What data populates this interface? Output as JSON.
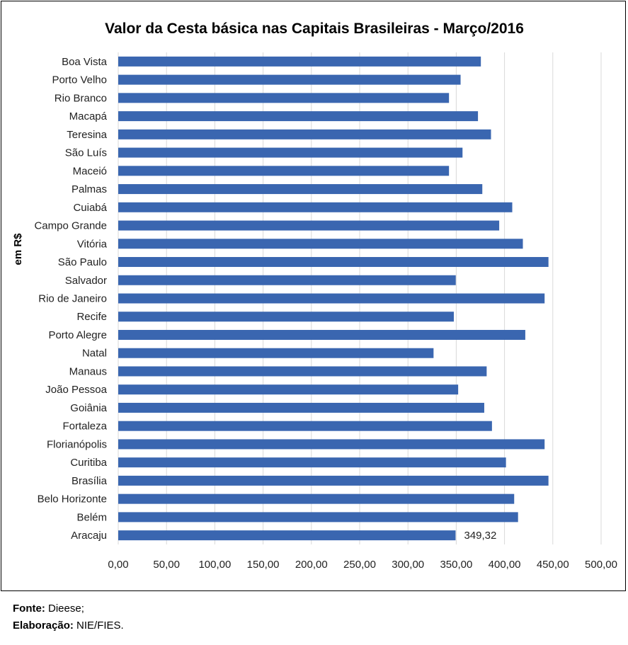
{
  "chart_data": {
    "type": "bar",
    "orientation": "horizontal",
    "title": "Valor da Cesta básica nas Capitais Brasileiras - Março/2016",
    "ylabel": "em R$",
    "xlabel": "",
    "xlim": [
      0,
      500
    ],
    "xticks": [
      "0,00",
      "50,00",
      "100,00",
      "150,00",
      "200,00",
      "250,00",
      "300,00",
      "350,00",
      "400,00",
      "450,00",
      "500,00"
    ],
    "bar_color": "#3a66b0",
    "grid": true,
    "categories": [
      "Boa Vista",
      "Porto Velho",
      "Rio Branco",
      "Macapá",
      "Teresina",
      "São Luís",
      "Maceió",
      "Palmas",
      "Cuiabá",
      "Campo Grande",
      "Vitória",
      "São Paulo",
      "Salvador",
      "Rio de Janeiro",
      "Recife",
      "Porto Alegre",
      "Natal",
      "Manaus",
      "João Pessoa",
      "Goiânia",
      "Fortaleza",
      "Florianópolis",
      "Curitiba",
      "Brasília",
      "Belo Horizonte",
      "Belém",
      "Aracaju"
    ],
    "values": [
      375.5,
      354.5,
      342.5,
      372.5,
      386.0,
      356.5,
      342.5,
      377.0,
      408.0,
      394.5,
      419.0,
      445.5,
      349.5,
      441.5,
      347.5,
      421.5,
      326.5,
      381.5,
      352.0,
      379.0,
      387.0,
      441.5,
      401.5,
      445.5,
      410.0,
      414.0,
      349.32
    ],
    "data_labels": [
      {
        "category": "Aracaju",
        "text": "349,32"
      }
    ]
  },
  "footer": {
    "source_label": "Fonte:",
    "source_value": "Dieese;",
    "credit_label": "Elaboração:",
    "credit_value": "NIE/FIES."
  }
}
